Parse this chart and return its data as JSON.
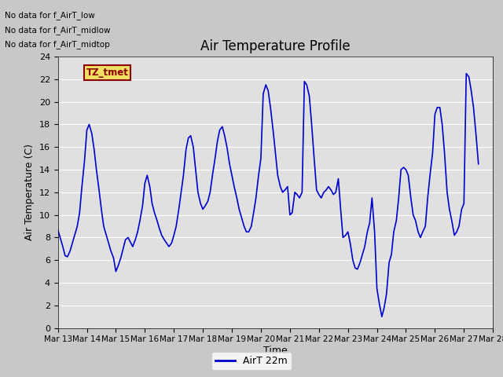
{
  "title": "Air Temperature Profile",
  "xlabel": "Time",
  "ylabel": "Air Temperature (C)",
  "fig_bg_color": "#c8c8c8",
  "plot_bg_color": "#e0e0e0",
  "line_color": "#0000cc",
  "line_width": 1.2,
  "ylim": [
    0,
    24
  ],
  "yticks": [
    0,
    2,
    4,
    6,
    8,
    10,
    12,
    14,
    16,
    18,
    20,
    22,
    24
  ],
  "legend_label": "AirT 22m",
  "no_data_texts": [
    "No data for f_AirT_low",
    "No data for f_AirT_midlow",
    "No data for f_AirT_midtop"
  ],
  "tz_label": "TZ_tmet",
  "x_tick_labels": [
    "Mar 13",
    "Mar 14",
    "Mar 15",
    "Mar 16",
    "Mar 17",
    "Mar 18",
    "Mar 19",
    "Mar 20",
    "Mar 21",
    "Mar 22",
    "Mar 23",
    "Mar 24",
    "Mar 25",
    "Mar 26",
    "Mar 27",
    "Mar 28"
  ],
  "time_values": [
    0.0,
    0.08,
    0.17,
    0.25,
    0.33,
    0.42,
    0.5,
    0.58,
    0.67,
    0.75,
    0.83,
    0.92,
    1.0,
    1.08,
    1.17,
    1.25,
    1.33,
    1.42,
    1.5,
    1.58,
    1.67,
    1.75,
    1.83,
    1.92,
    2.0,
    2.08,
    2.17,
    2.25,
    2.33,
    2.42,
    2.5,
    2.58,
    2.67,
    2.75,
    2.83,
    2.92,
    3.0,
    3.08,
    3.17,
    3.25,
    3.33,
    3.42,
    3.5,
    3.58,
    3.67,
    3.75,
    3.83,
    3.92,
    4.0,
    4.08,
    4.17,
    4.25,
    4.33,
    4.42,
    4.5,
    4.58,
    4.67,
    4.75,
    4.83,
    4.92,
    5.0,
    5.08,
    5.17,
    5.25,
    5.33,
    5.42,
    5.5,
    5.58,
    5.67,
    5.75,
    5.83,
    5.92,
    6.0,
    6.08,
    6.17,
    6.25,
    6.33,
    6.42,
    6.5,
    6.58,
    6.67,
    6.75,
    6.83,
    6.92,
    7.0,
    7.08,
    7.17,
    7.25,
    7.33,
    7.42,
    7.5,
    7.58,
    7.67,
    7.75,
    7.83,
    7.92,
    8.0,
    8.08,
    8.17,
    8.25,
    8.33,
    8.42,
    8.5,
    8.58,
    8.67,
    8.75,
    8.83,
    8.92,
    9.0,
    9.08,
    9.17,
    9.25,
    9.33,
    9.42,
    9.5,
    9.58,
    9.67,
    9.75,
    9.83,
    9.92,
    10.0,
    10.08,
    10.17,
    10.25,
    10.33,
    10.42,
    10.5,
    10.58,
    10.67,
    10.75,
    10.83,
    10.92,
    11.0,
    11.08,
    11.17,
    11.25,
    11.33,
    11.42,
    11.5,
    11.58,
    11.67,
    11.75,
    11.83,
    11.92,
    12.0,
    12.08,
    12.17,
    12.25,
    12.33,
    12.42,
    12.5,
    12.58,
    12.67,
    12.75,
    12.83,
    12.92,
    13.0,
    13.08,
    13.17,
    13.25,
    13.33,
    13.42,
    13.5,
    13.58,
    13.67,
    13.75,
    13.83,
    13.92,
    14.0,
    14.08,
    14.17,
    14.25,
    14.33,
    14.42,
    14.5
  ],
  "temp_values": [
    8.7,
    8.0,
    7.2,
    6.4,
    6.3,
    6.8,
    7.5,
    8.2,
    9.0,
    10.2,
    12.5,
    14.8,
    17.5,
    18.0,
    17.2,
    15.8,
    14.0,
    12.2,
    10.5,
    9.0,
    8.2,
    7.5,
    6.8,
    6.2,
    5.0,
    5.5,
    6.2,
    7.0,
    7.8,
    8.0,
    7.6,
    7.2,
    7.8,
    8.5,
    9.5,
    10.8,
    12.8,
    13.5,
    12.5,
    11.0,
    10.2,
    9.5,
    8.8,
    8.2,
    7.8,
    7.5,
    7.2,
    7.5,
    8.2,
    9.0,
    10.5,
    12.0,
    13.5,
    15.8,
    16.8,
    17.0,
    16.0,
    14.0,
    12.0,
    11.0,
    10.5,
    10.8,
    11.2,
    12.0,
    13.5,
    15.0,
    16.5,
    17.5,
    17.8,
    17.0,
    16.0,
    14.5,
    13.5,
    12.5,
    11.5,
    10.5,
    9.8,
    9.0,
    8.5,
    8.5,
    9.0,
    10.2,
    11.5,
    13.5,
    15.0,
    20.7,
    21.5,
    21.0,
    19.5,
    17.5,
    15.5,
    13.5,
    12.5,
    12.0,
    12.2,
    12.5,
    10.0,
    10.2,
    12.0,
    11.8,
    11.5,
    12.0,
    21.8,
    21.5,
    20.5,
    18.0,
    15.2,
    12.2,
    11.8,
    11.5,
    12.0,
    12.2,
    12.5,
    12.2,
    11.8,
    12.0,
    13.2,
    10.5,
    8.0,
    8.2,
    8.5,
    7.5,
    6.0,
    5.3,
    5.2,
    5.8,
    6.5,
    7.2,
    8.5,
    9.3,
    11.5,
    8.5,
    3.5,
    2.2,
    1.0,
    1.8,
    3.0,
    5.8,
    6.5,
    8.5,
    9.5,
    11.5,
    14.0,
    14.2,
    14.0,
    13.5,
    11.5,
    10.0,
    9.5,
    8.5,
    8.0,
    8.5,
    9.0,
    11.5,
    13.5,
    15.5,
    18.9,
    19.5,
    19.5,
    18.0,
    15.5,
    12.0,
    10.5,
    9.5,
    8.2,
    8.5,
    9.0,
    10.5,
    11.0,
    22.5,
    22.2,
    21.0,
    19.5,
    17.0,
    14.5
  ]
}
